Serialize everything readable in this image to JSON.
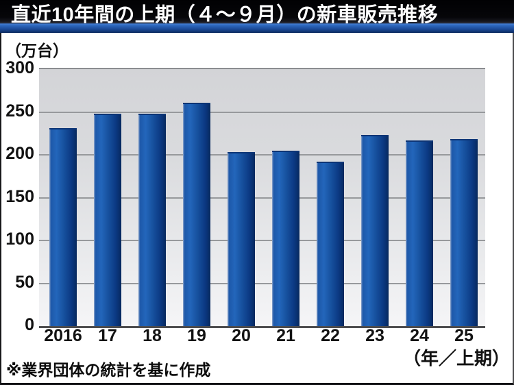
{
  "title": "直近10年間の上期（４～９月）の新車販売推移",
  "unit_label": "（万台）",
  "axis_note": "（年／上期）",
  "footnote": "※業界団体の統計を基に作成",
  "colors": {
    "bar_light_edge": "#8fa6cc",
    "bar_bright": "#2366bb",
    "bar_mid": "#17519f",
    "bar_dark": "#07285c",
    "title_band_blue": "#3f79cd",
    "title_bar_black": "#010103",
    "plot_bg_top": "#d3d4d7",
    "plot_bg_bottom": "#f5f5f7",
    "gridline": "#97999c",
    "baseline": "#4c4c4e",
    "title_text": "#ffffff",
    "body_text": "#121212"
  },
  "chart_data": {
    "type": "bar",
    "title": "直近10年間の上期（４～９月）の新車販売推移",
    "categories": [
      "2016",
      "17",
      "18",
      "19",
      "20",
      "21",
      "22",
      "23",
      "24",
      "25"
    ],
    "values": [
      231,
      248,
      248,
      261,
      203,
      205,
      192,
      223,
      217,
      218
    ],
    "xlabel": "（年／上期）",
    "ylabel": "（万台）",
    "ylim": [
      0,
      300
    ],
    "yticks": [
      0,
      50,
      100,
      150,
      200,
      250,
      300
    ],
    "ytick_interval": 50,
    "grid": true,
    "legend": false,
    "source_note": "※業界団体の統計を基に作成"
  }
}
